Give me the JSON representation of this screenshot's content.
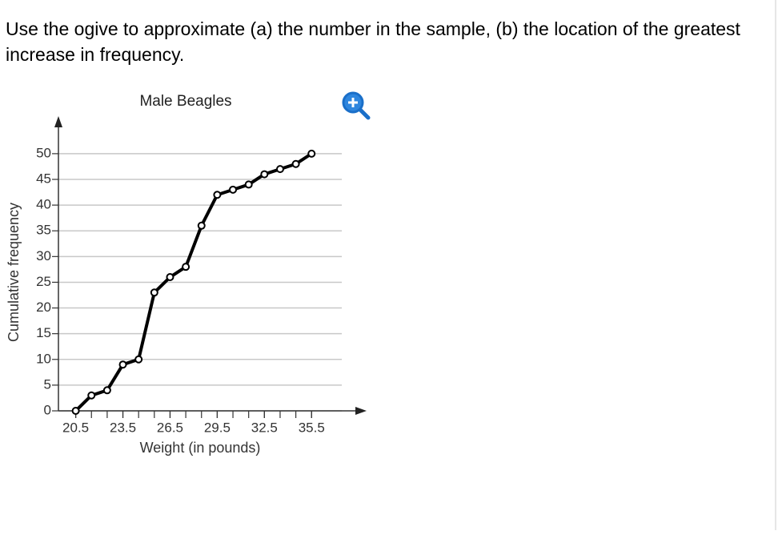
{
  "question": "Use the ogive to approximate (a) the number in the sample, (b) the location of the greatest increase in frequency.",
  "chart_data": {
    "type": "line",
    "title": "Male Beagles",
    "x_label": "Weight (in pounds)",
    "y_label": "Cumulative frequency",
    "x": [
      20.5,
      21.5,
      22.5,
      23.5,
      24.5,
      25.5,
      26.5,
      27.5,
      28.5,
      29.5,
      30.5,
      31.5,
      32.5,
      33.5,
      34.5,
      35.5
    ],
    "values": [
      0,
      3,
      4,
      9,
      10,
      23,
      26,
      28,
      36,
      42,
      43,
      44,
      46,
      47,
      48,
      50
    ],
    "color": "#000000",
    "xlim": [
      19.4,
      39
    ],
    "ylim": [
      0,
      57.3
    ],
    "xticks": [
      20.5,
      23.5,
      26.5,
      29.5,
      32.5,
      35.5
    ],
    "yticks": [
      0,
      5,
      10,
      15,
      20,
      25,
      30,
      35,
      40,
      45,
      50
    ],
    "grid": true
  }
}
